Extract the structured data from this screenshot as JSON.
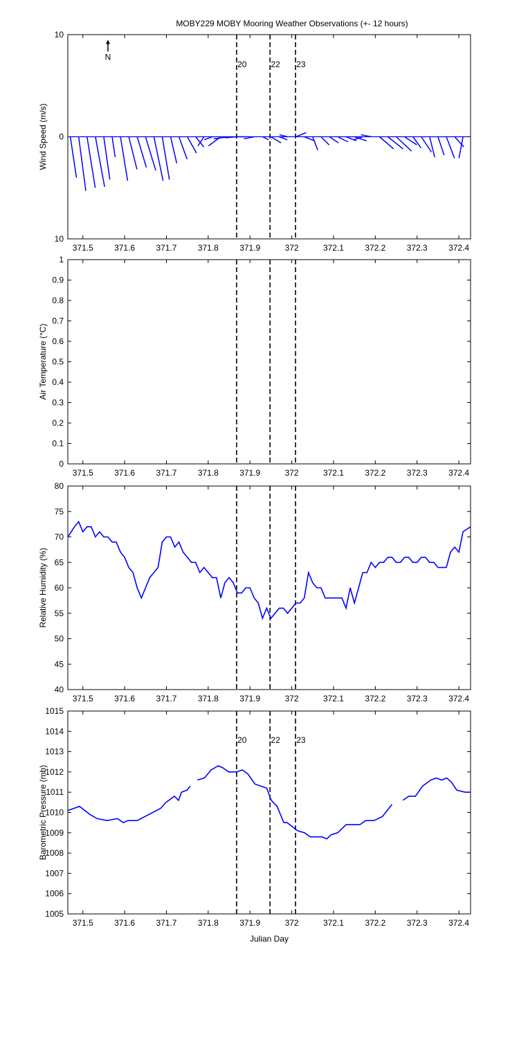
{
  "chart_data": [
    {
      "type": "stick",
      "title": "MOBY229 MOBY Mooring Weather Observations (+- 12 hours)",
      "ylabel": "Wind Speed (m/s)",
      "xlim": [
        371.464,
        372.428
      ],
      "xticks": [
        371.5,
        371.6,
        371.7,
        371.8,
        371.9,
        372,
        372.1,
        372.2,
        372.3,
        372.4
      ],
      "ylim": [
        -10,
        10
      ],
      "yticks": [
        {
          "value": -10,
          "label": "10"
        },
        0,
        10
      ],
      "color": "#0000ff",
      "x": [
        371.47,
        371.49,
        371.51,
        371.53,
        371.55,
        371.57,
        371.59,
        371.61,
        371.63,
        371.65,
        371.67,
        371.69,
        371.71,
        371.73,
        371.75,
        371.77,
        371.79,
        371.81,
        371.83,
        371.85,
        371.87,
        371.89,
        371.91,
        371.93,
        371.95,
        371.97,
        371.99,
        372.01,
        372.03,
        372.05,
        372.07,
        372.09,
        372.11,
        372.13,
        372.15,
        372.17,
        372.19,
        372.21,
        372.23,
        372.25,
        372.27,
        372.29,
        372.31,
        372.33,
        372.35,
        372.37,
        372.39,
        372.41
      ],
      "u": [
        0.6,
        0.7,
        0.8,
        0.9,
        0.6,
        0.3,
        0.7,
        0.8,
        0.9,
        1.0,
        0.9,
        0.7,
        0.6,
        0.8,
        0.9,
        0.8,
        -0.6,
        -0.8,
        -1.2,
        -1.5,
        -1.2,
        -1.0,
        -1.0,
        0.6,
        1.0,
        0.8,
        -0.8,
        1.0,
        1.0,
        0.5,
        0.8,
        0.9,
        1.0,
        1.0,
        1.2,
        -0.9,
        -1.0,
        1.4,
        1.5,
        1.5,
        1.2,
        0.8,
        1.0,
        0.5,
        0.6,
        0.8,
        0.9,
        -0.4
      ],
      "v": [
        -4.0,
        -5.3,
        -5.0,
        -4.9,
        -4.2,
        -2.0,
        -4.3,
        -3.2,
        -3.0,
        -3.3,
        -4.3,
        -4.2,
        -2.6,
        -2.2,
        -1.6,
        -1.0,
        -0.9,
        -0.3,
        -0.9,
        -0.2,
        -0.1,
        0.0,
        -0.2,
        -0.3,
        -0.6,
        -0.3,
        0.2,
        0.4,
        -0.4,
        -1.3,
        -0.8,
        -0.6,
        -0.5,
        -0.4,
        -0.4,
        -0.3,
        0.2,
        -1.2,
        -1.2,
        -1.4,
        -0.8,
        -1.1,
        -1.5,
        -2.0,
        -1.8,
        -2.1,
        -1.0,
        -2.1
      ],
      "vlines": [
        371.868,
        371.948,
        372.009
      ],
      "annotations": [
        {
          "text": "N",
          "x": 371.56,
          "y": 7.8,
          "color": "#000000"
        },
        {
          "text": "20",
          "x": 371.87,
          "y": 7.1,
          "color": "#cc0000"
        },
        {
          "text": "22",
          "x": 371.95,
          "y": 7.1,
          "color": "#cc0000"
        },
        {
          "text": "23",
          "x": 372.011,
          "y": 7.1,
          "color": "#cc0000"
        }
      ]
    },
    {
      "type": "line",
      "ylabel": "Air Temperature (°C)",
      "xlim": [
        371.464,
        372.428
      ],
      "xticks": [
        371.5,
        371.6,
        371.7,
        371.8,
        371.9,
        372,
        372.1,
        372.2,
        372.3,
        372.4
      ],
      "ylim": [
        0,
        1
      ],
      "yticks": [
        0,
        0.1,
        0.2,
        0.3,
        0.4,
        0.5,
        0.6,
        0.7,
        0.8,
        0.9,
        1
      ],
      "x": [],
      "series": [],
      "vlines": [
        371.868,
        371.948,
        372.009
      ],
      "annotations": []
    },
    {
      "type": "line",
      "ylabel": "Relative Humidity (%)",
      "xlim": [
        371.464,
        372.428
      ],
      "xticks": [
        371.5,
        371.6,
        371.7,
        371.8,
        371.9,
        372,
        372.1,
        372.2,
        372.3,
        372.4
      ],
      "ylim": [
        40,
        80
      ],
      "yticks": [
        40,
        45,
        50,
        55,
        60,
        65,
        70,
        75,
        80
      ],
      "x": [
        371.464,
        371.48,
        371.49,
        371.5,
        371.51,
        371.52,
        371.53,
        371.54,
        371.55,
        371.56,
        371.57,
        371.58,
        371.59,
        371.6,
        371.61,
        371.62,
        371.63,
        371.64,
        371.65,
        371.66,
        371.67,
        371.68,
        371.69,
        371.7,
        371.71,
        371.72,
        371.73,
        371.74,
        371.75,
        371.76,
        371.77,
        371.78,
        371.79,
        371.8,
        371.81,
        371.82,
        371.83,
        371.84,
        371.85,
        371.86,
        371.87,
        371.88,
        371.89,
        371.9,
        371.91,
        371.92,
        371.93,
        371.94,
        371.95,
        371.96,
        371.97,
        371.98,
        371.99,
        372.0,
        372.01,
        372.02,
        372.03,
        372.04,
        372.05,
        372.06,
        372.07,
        372.08,
        372.09,
        372.1,
        372.11,
        372.12,
        372.13,
        372.14,
        372.15,
        372.16,
        372.17,
        372.18,
        372.19,
        372.2,
        372.21,
        372.22,
        372.23,
        372.24,
        372.25,
        372.26,
        372.27,
        372.28,
        372.29,
        372.3,
        372.31,
        372.32,
        372.33,
        372.34,
        372.35,
        372.36,
        372.37,
        372.38,
        372.39,
        372.4,
        372.41,
        372.428
      ],
      "series": [
        {
          "color": "#0000ff",
          "values": [
            70,
            72,
            73,
            71,
            72,
            72,
            70,
            71,
            70,
            70,
            69,
            69,
            67,
            66,
            64,
            63,
            60,
            58,
            60,
            62,
            63,
            64,
            69,
            70,
            70,
            68,
            69,
            67,
            66,
            65,
            65,
            63,
            64,
            63,
            62,
            62,
            58,
            61,
            62,
            61,
            59,
            59,
            60,
            60,
            58,
            57,
            54,
            56,
            54,
            55,
            56,
            56,
            55,
            56,
            57,
            57,
            58,
            63,
            61,
            60,
            60,
            58,
            58,
            58,
            58,
            58,
            56,
            60,
            57,
            60,
            63,
            63,
            65,
            64,
            65,
            65,
            66,
            66,
            65,
            65,
            66,
            66,
            65,
            65,
            66,
            66,
            65,
            65,
            64,
            64,
            64,
            67,
            68,
            67,
            71,
            72
          ]
        }
      ],
      "vlines": [
        371.868,
        371.948,
        372.009
      ],
      "annotations": []
    },
    {
      "type": "line",
      "ylabel": "Barometric Pressure (mb)",
      "xlabel": "Julian Day",
      "xlim": [
        371.464,
        372.428
      ],
      "xticks": [
        371.5,
        371.6,
        371.7,
        371.8,
        371.9,
        372,
        372.1,
        372.2,
        372.3,
        372.4
      ],
      "ylim": [
        1005,
        1015
      ],
      "yticks": [
        1005,
        1006,
        1007,
        1008,
        1009,
        1010,
        1011,
        1012,
        1013,
        1014,
        1015
      ],
      "x": [
        371.464,
        371.492,
        371.517,
        371.534,
        371.558,
        371.583,
        371.597,
        371.608,
        371.63,
        371.686,
        371.699,
        371.719,
        371.729,
        371.736,
        371.749,
        371.757,
        371.766,
        371.774,
        371.791,
        371.807,
        371.824,
        371.835,
        371.849,
        371.868,
        371.882,
        371.895,
        371.912,
        371.94,
        371.951,
        371.965,
        371.981,
        371.989,
        372.014,
        372.031,
        372.044,
        372.072,
        372.084,
        372.094,
        372.11,
        372.13,
        372.163,
        372.177,
        372.197,
        372.217,
        372.24,
        372.253,
        372.266,
        372.28,
        372.296,
        372.313,
        372.333,
        372.346,
        372.359,
        372.371,
        372.382,
        372.395,
        372.415,
        372.428
      ],
      "series": [
        {
          "color": "#0000ff",
          "values": [
            1010.1,
            1010.3,
            1009.9,
            1009.7,
            1009.6,
            1009.7,
            1009.5,
            1009.6,
            1009.6,
            1010.2,
            1010.5,
            1010.8,
            1010.6,
            1011.0,
            1011.1,
            1011.3,
            null,
            1011.6,
            1011.7,
            1012.1,
            1012.3,
            1012.2,
            1012.0,
            1012.0,
            1012.1,
            1011.9,
            1011.4,
            1011.2,
            1010.6,
            1010.3,
            1009.5,
            1009.5,
            1009.1,
            1009.0,
            1008.8,
            1008.8,
            1008.7,
            1008.9,
            1009.0,
            1009.4,
            1009.4,
            1009.6,
            1009.6,
            1009.8,
            1010.4,
            null,
            1010.6,
            1010.8,
            1010.8,
            1011.3,
            1011.6,
            1011.7,
            1011.6,
            1011.7,
            1011.5,
            1011.1,
            1011.0,
            1011.0
          ]
        }
      ],
      "vlines": [
        371.868,
        371.948,
        372.009
      ],
      "annotations": [
        {
          "text": "20",
          "x": 371.87,
          "y": 1013.57,
          "color": "#cc0000"
        },
        {
          "text": "22",
          "x": 371.95,
          "y": 1013.57,
          "color": "#cc0000"
        },
        {
          "text": "23",
          "x": 372.011,
          "y": 1013.57,
          "color": "#cc0000"
        }
      ]
    }
  ]
}
